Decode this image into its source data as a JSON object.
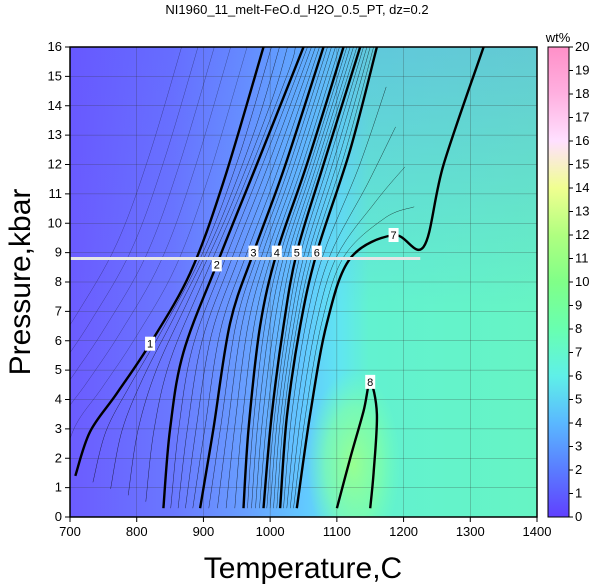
{
  "chart_data": {
    "type": "heatmap",
    "title": "NI1960_11_melt-FeO.d_H2O_0.5_PT, dz=0.2",
    "xlabel": "Temperature,C",
    "ylabel": "Pressure,kbar",
    "xlim": [
      700,
      1400
    ],
    "ylim": [
      0,
      16
    ],
    "xticks": [
      "700",
      "800",
      "900",
      "1000",
      "1100",
      "1200",
      "1300",
      "1400"
    ],
    "yticks": [
      "0",
      "1",
      "2",
      "3",
      "4",
      "5",
      "6",
      "7",
      "8",
      "9",
      "10",
      "11",
      "12",
      "13",
      "14",
      "15",
      "16"
    ],
    "grid": true,
    "colorbar": {
      "label": "wt%",
      "range": [
        0,
        20
      ],
      "ticks": [
        "0",
        "1",
        "2",
        "3",
        "4",
        "5",
        "6",
        "7",
        "8",
        "9",
        "10",
        "11",
        "12",
        "13",
        "14",
        "15",
        "16",
        "17",
        "18",
        "19",
        "20"
      ],
      "colors": [
        "#6040ff",
        "#5a7cff",
        "#5ab8ff",
        "#5ff0e8",
        "#68ffb0",
        "#80ff88",
        "#b0ff80",
        "#f0ff90",
        "#ffe0ff",
        "#ffb0e0",
        "#ff90c8"
      ]
    },
    "contours": [
      {
        "label": "1",
        "points": [
          [
            708,
            1.4
          ],
          [
            730,
            2.9
          ],
          [
            770,
            4.2
          ],
          [
            820,
            5.9
          ],
          [
            880,
            8.3
          ],
          [
            930,
            11.4
          ],
          [
            990,
            16
          ]
        ]
      },
      {
        "label": "2",
        "points": [
          [
            840,
            0.3
          ],
          [
            850,
            3
          ],
          [
            870,
            5.6
          ],
          [
            920,
            8.6
          ],
          [
            980,
            12
          ],
          [
            1050,
            16
          ]
        ]
      },
      {
        "label": "3",
        "points": [
          [
            895,
            0.3
          ],
          [
            915,
            3
          ],
          [
            940,
            6.6
          ],
          [
            975,
            9
          ],
          [
            1020,
            11.8
          ],
          [
            1080,
            16
          ]
        ]
      },
      {
        "label": "4",
        "points": [
          [
            960,
            0.3
          ],
          [
            968,
            3.1
          ],
          [
            985,
            6.5
          ],
          [
            1010,
            9
          ],
          [
            1055,
            12
          ],
          [
            1110,
            16
          ]
        ]
      },
      {
        "label": "5",
        "points": [
          [
            990,
            0.3
          ],
          [
            1002,
            3.4
          ],
          [
            1020,
            6.5
          ],
          [
            1040,
            9
          ],
          [
            1080,
            12
          ],
          [
            1135,
            16
          ]
        ]
      },
      {
        "label": "6",
        "points": [
          [
            1015,
            0.3
          ],
          [
            1025,
            3.4
          ],
          [
            1045,
            6.5
          ],
          [
            1070,
            9
          ],
          [
            1120,
            12.5
          ],
          [
            1160,
            16
          ]
        ]
      },
      {
        "label": "7",
        "points": [
          [
            1040,
            0.3
          ],
          [
            1060,
            3.5
          ],
          [
            1085,
            6.6
          ],
          [
            1120,
            8.8
          ],
          [
            1185,
            9.6
          ],
          [
            1230,
            9.2
          ],
          [
            1260,
            12
          ],
          [
            1320,
            16
          ]
        ]
      },
      {
        "label": "8",
        "points": [
          [
            1100,
            0.3
          ],
          [
            1120,
            2
          ],
          [
            1140,
            3.6
          ],
          [
            1150,
            4.6
          ],
          [
            1160,
            3.5
          ],
          [
            1155,
            1.5
          ],
          [
            1150,
            0.3
          ]
        ]
      }
    ],
    "reference_line": {
      "pressure": 8.8,
      "x_range": [
        700,
        1225
      ]
    }
  }
}
